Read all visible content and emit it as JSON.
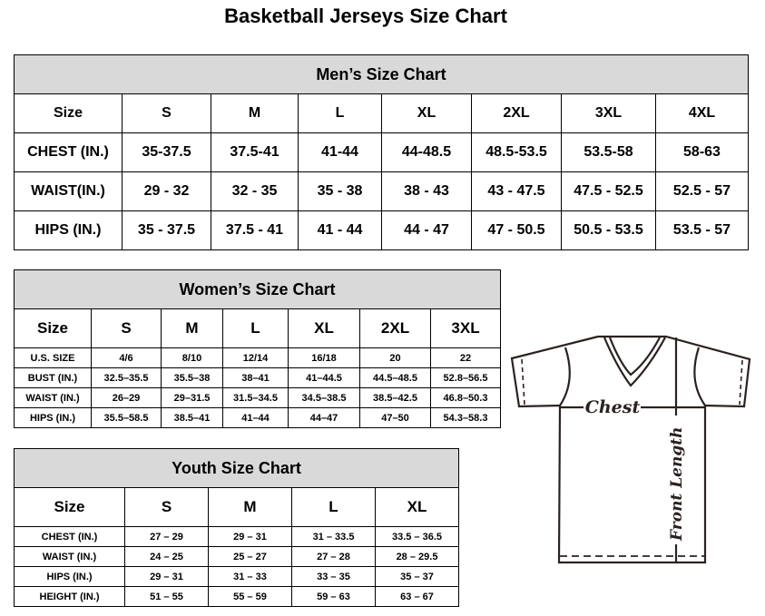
{
  "title": "Basketball Jerseys Size Chart",
  "men": {
    "heading": "Men’s Size Chart",
    "rows": [
      [
        "Size",
        "S",
        "M",
        "L",
        "XL",
        "2XL",
        "3XL",
        "4XL"
      ],
      [
        "CHEST (IN.)",
        "35-37.5",
        "37.5-41",
        "41-44",
        "44-48.5",
        "48.5-53.5",
        "53.5-58",
        "58-63"
      ],
      [
        "WAIST(IN.)",
        "29 - 32",
        "32 - 35",
        "35 - 38",
        "38 - 43",
        "43 - 47.5",
        "47.5 - 52.5",
        "52.5 - 57"
      ],
      [
        "HIPS (IN.)",
        "35 - 37.5",
        "37.5 - 41",
        "41 - 44",
        "44 - 47",
        "47 - 50.5",
        "50.5 - 53.5",
        "53.5 - 57"
      ]
    ]
  },
  "women": {
    "heading": "Women’s Size Chart",
    "rows": [
      [
        "Size",
        "S",
        "M",
        "L",
        "XL",
        "2XL",
        "3XL"
      ],
      [
        "U.S.  SIZE",
        "4/6",
        "8/10",
        "12/14",
        "16/18",
        "20",
        "22"
      ],
      [
        "BUST  (IN.)",
        "32.5–35.5",
        "35.5–38",
        "38–41",
        "41–44.5",
        "44.5–48.5",
        "52.8–56.5"
      ],
      [
        "WAIST  (IN.)",
        "26–29",
        "29–31.5",
        "31.5–34.5",
        "34.5–38.5",
        "38.5–42.5",
        "46.8–50.3"
      ],
      [
        "HIPS  (IN.)",
        "35.5–58.5",
        "38.5–41",
        "41–44",
        "44–47",
        "47–50",
        "54.3–58.3"
      ]
    ]
  },
  "youth": {
    "heading": "Youth Size Chart",
    "rows": [
      [
        "Size",
        "S",
        "M",
        "L",
        "XL"
      ],
      [
        "CHEST  (IN.)",
        "27  –  29",
        "29  –  31",
        "31  –  33.5",
        "33.5  –  36.5"
      ],
      [
        "WAIST  (IN.)",
        "24  –  25",
        "25  –  27",
        "27  –  28",
        "28  –  29.5"
      ],
      [
        "HIPS  (IN.)",
        "29  –  31",
        "31  –  33",
        "33  –  35",
        "35  –  37"
      ],
      [
        "HEIGHT  (IN.)",
        "51  –  55",
        "55  –  59",
        "59  –  63",
        "63  –  67"
      ]
    ]
  },
  "diagram": {
    "chest_label": "Chest",
    "length_label": "Front Length"
  },
  "colors": {
    "header_bg": "#d9d9d9",
    "line": "#2b2220"
  }
}
